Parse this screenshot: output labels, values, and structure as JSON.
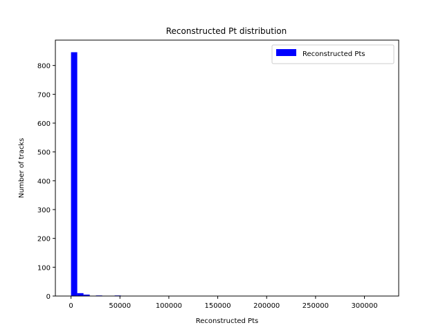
{
  "chart_data": {
    "type": "bar",
    "title": "Reconstructed Pt distribution",
    "xlabel": "Reconstructed Pts",
    "ylabel": "Number of tracks",
    "xlim": [
      -16000,
      335000
    ],
    "ylim": [
      0,
      888
    ],
    "xticks": [
      0,
      50000,
      100000,
      150000,
      200000,
      250000,
      300000
    ],
    "xtick_labels": [
      "0",
      "50000",
      "100000",
      "150000",
      "200000",
      "250000",
      "300000"
    ],
    "yticks": [
      0,
      100,
      200,
      300,
      400,
      500,
      600,
      700,
      800
    ],
    "ytick_labels": [
      "0",
      "100",
      "200",
      "300",
      "400",
      "500",
      "600",
      "700",
      "800"
    ],
    "bin_width": 6370,
    "bins_start": [
      0,
      6370,
      12740,
      25480,
      44590
    ],
    "values": [
      846,
      10,
      5,
      2,
      2
    ],
    "color": "#0000ff",
    "grid": false,
    "legend": {
      "entries": [
        "Reconstructed Pts"
      ],
      "placement": "top-right"
    }
  }
}
